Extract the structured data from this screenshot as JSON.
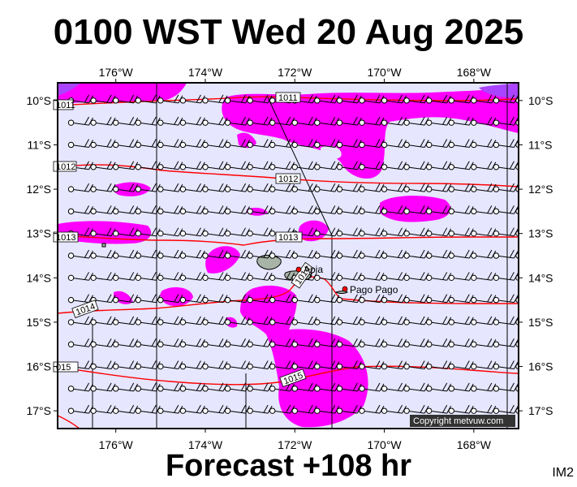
{
  "title": "0100 WST Wed 20 Aug 2025",
  "forecast": "Forecast +108 hr",
  "map_id": "IM2",
  "copyright": "Copyright metvuw.com",
  "colors": {
    "background": "#e6e6ff",
    "precip_heavy": "#ff00ff",
    "precip_medium": "#aa44ff",
    "isobar": "#ff0000",
    "land": "#a8b4a8",
    "frame": "#000000"
  },
  "x_axis": {
    "labels": [
      "176°W",
      "174°W",
      "172°W",
      "170°W",
      "168°W"
    ],
    "values": [
      -176,
      -174,
      -172,
      -170,
      -168
    ],
    "range": [
      -177.3,
      -167.0
    ]
  },
  "y_axis": {
    "labels": [
      "10°S",
      "11°S",
      "12°S",
      "13°S",
      "14°S",
      "15°S",
      "16°S",
      "17°S"
    ],
    "values": [
      -10,
      -11,
      -12,
      -13,
      -14,
      -15,
      -16,
      -17
    ],
    "range": [
      -9.6,
      -17.4
    ]
  },
  "isobars": [
    {
      "label": "1011",
      "values_hpa": 1011
    },
    {
      "label": "1011",
      "values_hpa": 1011
    },
    {
      "label": "1012",
      "values_hpa": 1012
    },
    {
      "label": "1012",
      "values_hpa": 1012
    },
    {
      "label": "1013",
      "values_hpa": 1013
    },
    {
      "label": "1013",
      "values_hpa": 1013
    },
    {
      "label": "1014",
      "values_hpa": 1014
    },
    {
      "label": "1014",
      "values_hpa": 1014
    },
    {
      "label": "1015",
      "values_hpa": 1015
    },
    {
      "label": "015",
      "values_hpa": 1015
    }
  ],
  "places": [
    {
      "name": "Apia",
      "lon": -171.8,
      "lat": -13.8
    },
    {
      "name": "Pago Pago",
      "lon": -170.7,
      "lat": -14.3
    }
  ],
  "wind": {
    "lon_start": -177.0,
    "lon_step": 0.5,
    "lon_count": 21,
    "lat_start": -10.0,
    "lat_step": -0.5,
    "lat_count": 15
  }
}
